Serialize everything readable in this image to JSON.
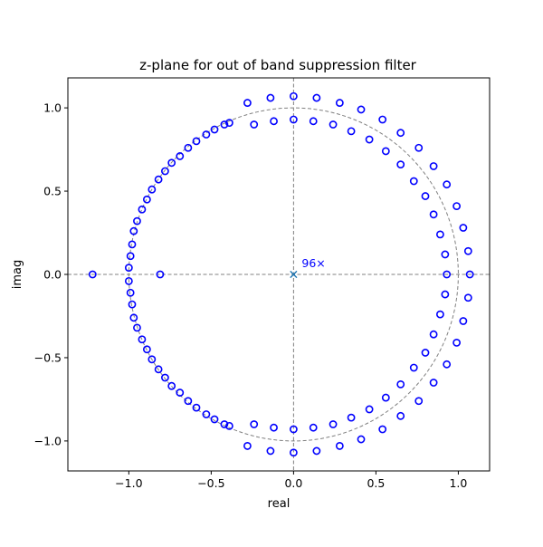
{
  "chart_data": {
    "type": "scatter",
    "title": "z-plane for out of band suppression filter",
    "xlabel": "real",
    "ylabel": "imag",
    "xlim": [
      -1.37,
      1.19
    ],
    "ylim": [
      -1.18,
      1.18
    ],
    "xticks": [
      {
        "value": -1.0,
        "label": "−1.0"
      },
      {
        "value": -0.5,
        "label": "−0.5"
      },
      {
        "value": 0.0,
        "label": "0.0"
      },
      {
        "value": 0.5,
        "label": "0.5"
      },
      {
        "value": 1.0,
        "label": "1.0"
      }
    ],
    "yticks": [
      {
        "value": -1.0,
        "label": "−1.0"
      },
      {
        "value": -0.5,
        "label": "−0.5"
      },
      {
        "value": 0.0,
        "label": "0.0"
      },
      {
        "value": 0.5,
        "label": "0.5"
      },
      {
        "value": 1.0,
        "label": "1.0"
      }
    ],
    "grid": false,
    "reference": {
      "unit_circle": true,
      "axis_lines": true
    },
    "poles": {
      "points": [
        {
          "x": 0,
          "y": 0
        }
      ],
      "multiplicity_label": "96×",
      "marker": "x"
    },
    "zeros": {
      "marker": "o",
      "points": [
        {
          "x": -1.22,
          "y": 0.0
        },
        {
          "x": -0.81,
          "y": 0.0
        },
        {
          "x": -1.0,
          "y": 0.04
        },
        {
          "x": -0.99,
          "y": 0.11
        },
        {
          "x": -0.98,
          "y": 0.18
        },
        {
          "x": -0.97,
          "y": 0.26
        },
        {
          "x": -0.95,
          "y": 0.32
        },
        {
          "x": -0.92,
          "y": 0.39
        },
        {
          "x": -0.89,
          "y": 0.45
        },
        {
          "x": -0.86,
          "y": 0.51
        },
        {
          "x": -0.82,
          "y": 0.57
        },
        {
          "x": -0.78,
          "y": 0.62
        },
        {
          "x": -0.74,
          "y": 0.67
        },
        {
          "x": -0.69,
          "y": 0.71
        },
        {
          "x": -0.64,
          "y": 0.76
        },
        {
          "x": -0.59,
          "y": 0.8
        },
        {
          "x": -0.53,
          "y": 0.84
        },
        {
          "x": -0.48,
          "y": 0.87
        },
        {
          "x": -0.42,
          "y": 0.9
        },
        {
          "x": -0.39,
          "y": 0.91
        },
        {
          "x": -0.24,
          "y": 0.9
        },
        {
          "x": -0.12,
          "y": 0.92
        },
        {
          "x": 0.0,
          "y": 0.93
        },
        {
          "x": 0.12,
          "y": 0.92
        },
        {
          "x": 0.24,
          "y": 0.9
        },
        {
          "x": 0.35,
          "y": 0.86
        },
        {
          "x": 0.46,
          "y": 0.81
        },
        {
          "x": 0.56,
          "y": 0.74
        },
        {
          "x": 0.65,
          "y": 0.66
        },
        {
          "x": 0.73,
          "y": 0.56
        },
        {
          "x": 0.8,
          "y": 0.47
        },
        {
          "x": 0.85,
          "y": 0.36
        },
        {
          "x": 0.89,
          "y": 0.24
        },
        {
          "x": 0.92,
          "y": 0.12
        },
        {
          "x": 0.93,
          "y": 0.0
        },
        {
          "x": -1.0,
          "y": -0.04
        },
        {
          "x": -0.99,
          "y": -0.11
        },
        {
          "x": -0.98,
          "y": -0.18
        },
        {
          "x": -0.97,
          "y": -0.26
        },
        {
          "x": -0.95,
          "y": -0.32
        },
        {
          "x": -0.92,
          "y": -0.39
        },
        {
          "x": -0.89,
          "y": -0.45
        },
        {
          "x": -0.86,
          "y": -0.51
        },
        {
          "x": -0.82,
          "y": -0.57
        },
        {
          "x": -0.78,
          "y": -0.62
        },
        {
          "x": -0.74,
          "y": -0.67
        },
        {
          "x": -0.69,
          "y": -0.71
        },
        {
          "x": -0.64,
          "y": -0.76
        },
        {
          "x": -0.59,
          "y": -0.8
        },
        {
          "x": -0.53,
          "y": -0.84
        },
        {
          "x": -0.48,
          "y": -0.87
        },
        {
          "x": -0.42,
          "y": -0.9
        },
        {
          "x": -0.39,
          "y": -0.91
        },
        {
          "x": -0.24,
          "y": -0.9
        },
        {
          "x": -0.12,
          "y": -0.92
        },
        {
          "x": 0.0,
          "y": -0.93
        },
        {
          "x": 0.12,
          "y": -0.92
        },
        {
          "x": 0.24,
          "y": -0.9
        },
        {
          "x": 0.35,
          "y": -0.86
        },
        {
          "x": 0.46,
          "y": -0.81
        },
        {
          "x": 0.56,
          "y": -0.74
        },
        {
          "x": 0.65,
          "y": -0.66
        },
        {
          "x": 0.73,
          "y": -0.56
        },
        {
          "x": 0.8,
          "y": -0.47
        },
        {
          "x": 0.85,
          "y": -0.36
        },
        {
          "x": 0.89,
          "y": -0.24
        },
        {
          "x": 0.92,
          "y": -0.12
        },
        {
          "x": -0.28,
          "y": 1.03
        },
        {
          "x": -0.14,
          "y": 1.06
        },
        {
          "x": 0.0,
          "y": 1.07
        },
        {
          "x": 0.14,
          "y": 1.06
        },
        {
          "x": 0.28,
          "y": 1.03
        },
        {
          "x": 0.41,
          "y": 0.99
        },
        {
          "x": 0.54,
          "y": 0.93
        },
        {
          "x": 0.65,
          "y": 0.85
        },
        {
          "x": 0.76,
          "y": 0.76
        },
        {
          "x": 0.85,
          "y": 0.65
        },
        {
          "x": 0.93,
          "y": 0.54
        },
        {
          "x": 0.99,
          "y": 0.41
        },
        {
          "x": 1.03,
          "y": 0.28
        },
        {
          "x": 1.06,
          "y": 0.14
        },
        {
          "x": 1.07,
          "y": 0.0
        },
        {
          "x": -0.28,
          "y": -1.03
        },
        {
          "x": -0.14,
          "y": -1.06
        },
        {
          "x": 0.0,
          "y": -1.07
        },
        {
          "x": 0.14,
          "y": -1.06
        },
        {
          "x": 0.28,
          "y": -1.03
        },
        {
          "x": 0.41,
          "y": -0.99
        },
        {
          "x": 0.54,
          "y": -0.93
        },
        {
          "x": 0.65,
          "y": -0.85
        },
        {
          "x": 0.76,
          "y": -0.76
        },
        {
          "x": 0.85,
          "y": -0.65
        },
        {
          "x": 0.93,
          "y": -0.54
        },
        {
          "x": 0.99,
          "y": -0.41
        },
        {
          "x": 1.03,
          "y": -0.28
        },
        {
          "x": 1.06,
          "y": -0.14
        }
      ]
    },
    "colors": {
      "zeros": "#0000ff",
      "pole": "#1f77b4",
      "pole_label": "#0000ff",
      "reference": "#808080",
      "axes": "#000000",
      "background": "#ffffff"
    }
  }
}
